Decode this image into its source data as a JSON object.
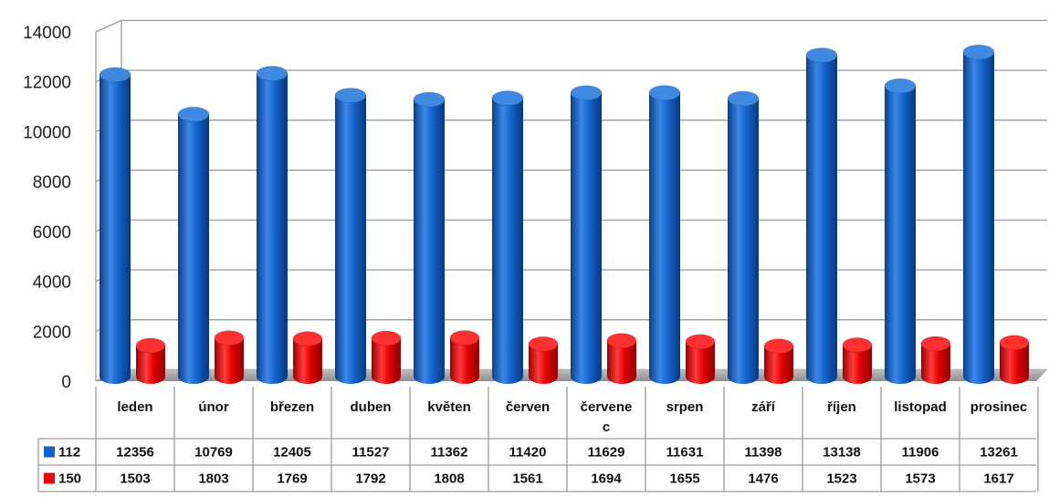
{
  "chart_data": {
    "type": "bar",
    "title": "",
    "xlabel": "",
    "ylabel": "",
    "ylim": [
      0,
      14000
    ],
    "yticks": [
      0,
      2000,
      4000,
      6000,
      8000,
      10000,
      12000,
      14000
    ],
    "grid": true,
    "style": "3d-cylinder",
    "legend": "data-table",
    "categories": [
      "leden",
      "únor",
      "březen",
      "duben",
      "květen",
      "červen",
      "červenec",
      "srpen",
      "září",
      "říjen",
      "listopad",
      "prosinec"
    ],
    "category_display": [
      [
        "leden"
      ],
      [
        "únor"
      ],
      [
        "březen"
      ],
      [
        "duben"
      ],
      [
        "květen"
      ],
      [
        "červen"
      ],
      [
        "červene",
        "c"
      ],
      [
        "srpen"
      ],
      [
        "září"
      ],
      [
        "říjen"
      ],
      [
        "listopad"
      ],
      [
        "prosinec"
      ]
    ],
    "series": [
      {
        "name": "112",
        "color": "#1060c8",
        "values": [
          12356,
          10769,
          12405,
          11527,
          11362,
          11420,
          11629,
          11631,
          11398,
          13138,
          11906,
          13261
        ]
      },
      {
        "name": "150",
        "color": "#e80808",
        "values": [
          1503,
          1803,
          1769,
          1792,
          1808,
          1561,
          1694,
          1655,
          1476,
          1523,
          1573,
          1617
        ]
      }
    ]
  }
}
